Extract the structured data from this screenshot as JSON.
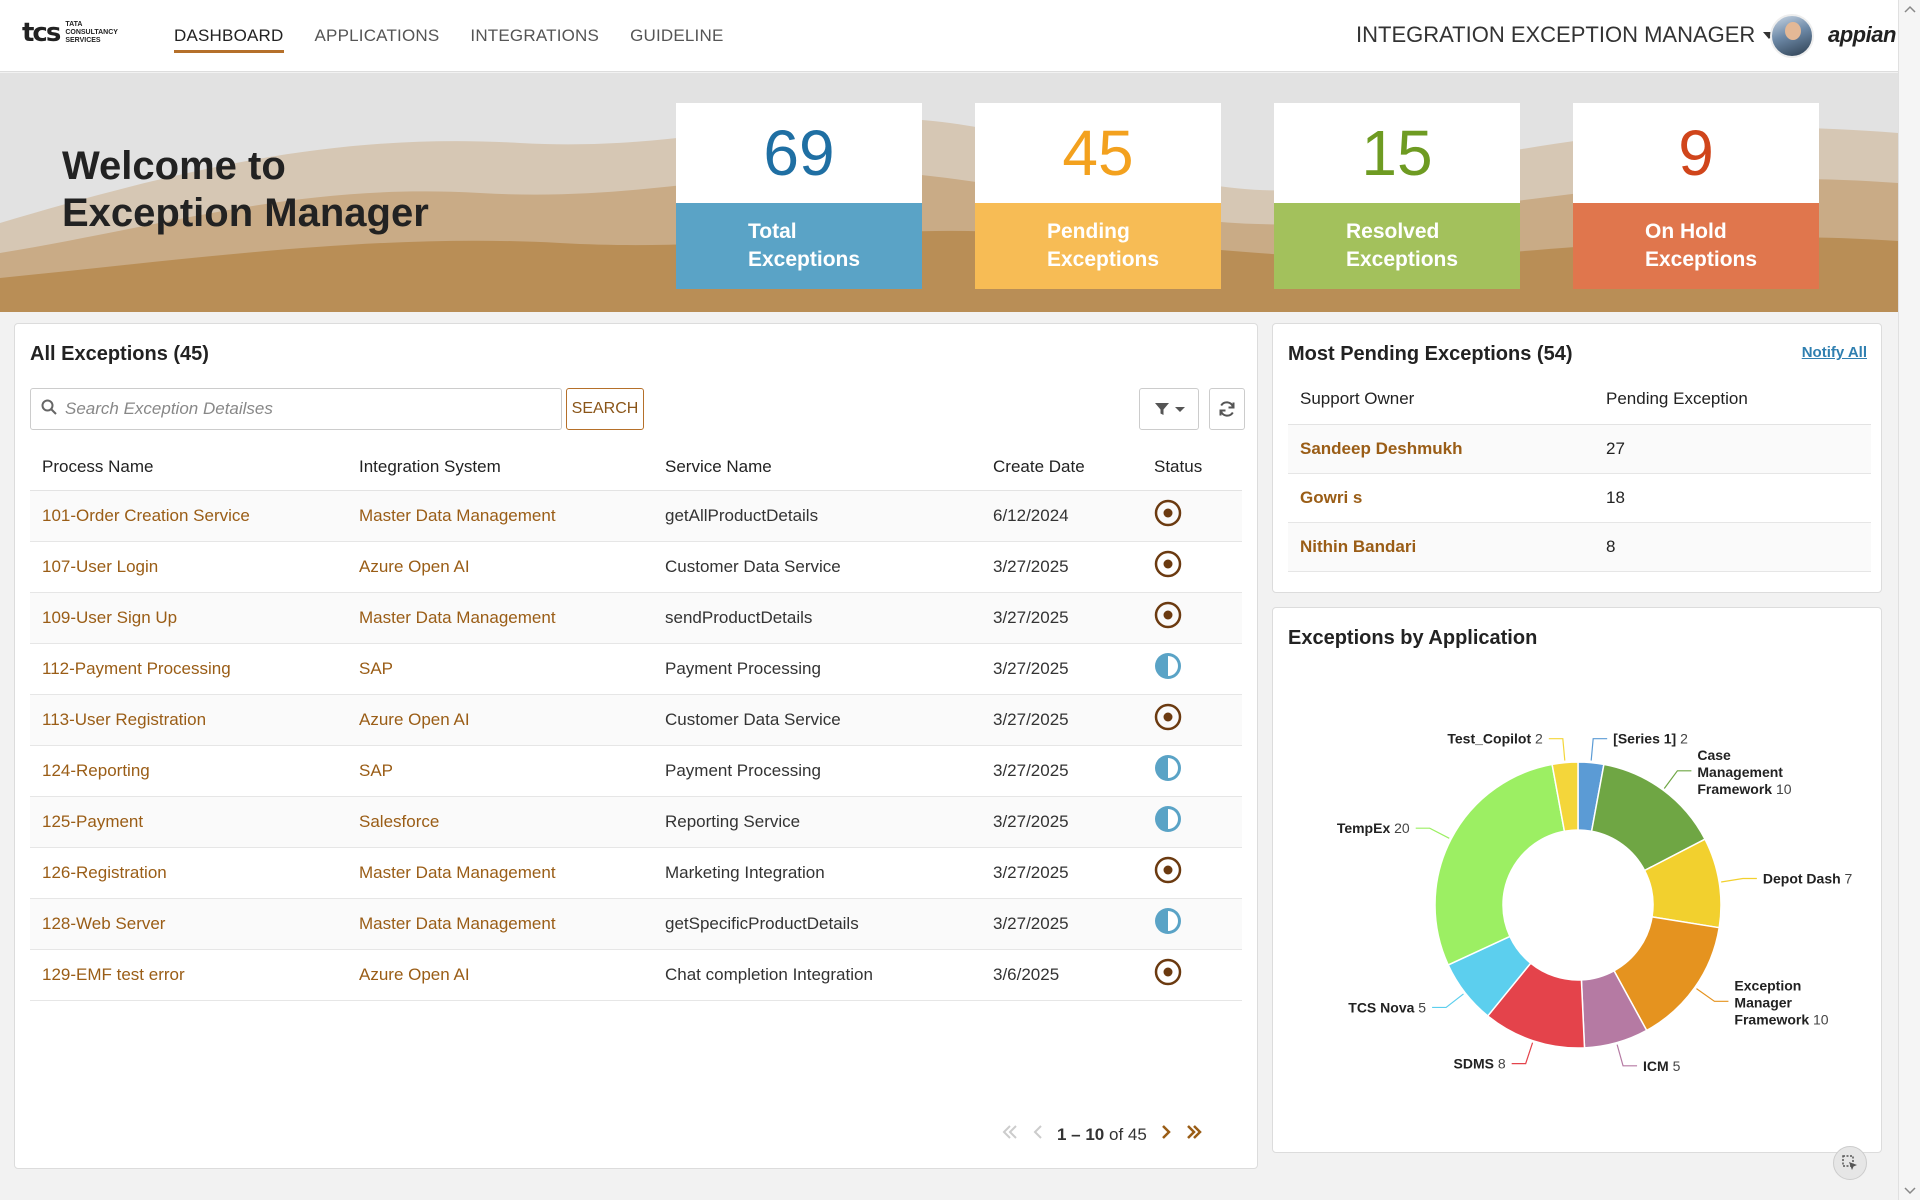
{
  "header": {
    "logo_mark": "tcs",
    "logo_sub": "TATA CONSULTANCY SERVICES",
    "nav": [
      "DASHBOARD",
      "APPLICATIONS",
      "INTEGRATIONS",
      "GUIDELINE"
    ],
    "active_nav": "DASHBOARD",
    "app_title": "INTEGRATION EXCEPTION MANAGER",
    "brand": "appian"
  },
  "hero": {
    "welcome_line1": "Welcome to",
    "welcome_line2": "Exception Manager",
    "kpis": [
      {
        "value": "69",
        "label1": "Total",
        "label2": "Exceptions",
        "color": "#5aa3c6",
        "num_color": "#1f6fa3",
        "icon": "list-icon"
      },
      {
        "value": "45",
        "label1": "Pending",
        "label2": "Exceptions",
        "color": "#f7bc55",
        "num_color": "#f3a11e",
        "icon": "clock-icon"
      },
      {
        "value": "15",
        "label1": "Resolved",
        "label2": "Exceptions",
        "color": "#a3c15c",
        "num_color": "#6e9b22",
        "icon": "check-icon"
      },
      {
        "value": "9",
        "label1": "On Hold",
        "label2": "Exceptions",
        "color": "#e0764d",
        "num_color": "#d0451b",
        "icon": "pause-icon"
      }
    ]
  },
  "exceptions": {
    "title": "All Exceptions (45)",
    "search_placeholder": "Search Exception Detailses",
    "search_label": "SEARCH",
    "columns": [
      "Process Name",
      "Integration System",
      "Service Name",
      "Create Date",
      "Status"
    ],
    "rows": [
      {
        "process": "101-Order Creation Service",
        "system": "Master Data Management",
        "service": "getAllProductDetails",
        "date": "6/12/2024",
        "status": "pending"
      },
      {
        "process": "107-User Login",
        "system": "Azure Open AI",
        "service": "Customer Data Service",
        "date": "3/27/2025",
        "status": "pending"
      },
      {
        "process": "109-User Sign Up",
        "system": "Master Data Management",
        "service": "sendProductDetails",
        "date": "3/27/2025",
        "status": "pending"
      },
      {
        "process": "112-Payment Processing",
        "system": "SAP",
        "service": "Payment Processing",
        "date": "3/27/2025",
        "status": "in-progress"
      },
      {
        "process": "113-User Registration",
        "system": "Azure Open AI",
        "service": "Customer Data Service",
        "date": "3/27/2025",
        "status": "pending"
      },
      {
        "process": "124-Reporting",
        "system": "SAP",
        "service": "Payment Processing",
        "date": "3/27/2025",
        "status": "in-progress"
      },
      {
        "process": "125-Payment",
        "system": "Salesforce",
        "service": "Reporting Service",
        "date": "3/27/2025",
        "status": "in-progress"
      },
      {
        "process": "126-Registration",
        "system": "Master Data Management",
        "service": "Marketing Integration",
        "date": "3/27/2025",
        "status": "pending"
      },
      {
        "process": "128-Web Server",
        "system": "Master Data Management",
        "service": "getSpecificProductDetails",
        "date": "3/27/2025",
        "status": "in-progress"
      },
      {
        "process": "129-EMF test error",
        "system": "Azure Open AI",
        "service": "Chat completion Integration",
        "date": "3/6/2025",
        "status": "pending"
      }
    ],
    "pager_range": "1 – 10",
    "pager_of": "of 45"
  },
  "pending": {
    "title": "Most Pending Exceptions (54)",
    "notify_label": "Notify All",
    "columns": [
      "Support Owner",
      "Pending Exception"
    ],
    "rows": [
      {
        "owner": "Sandeep  Deshmukh",
        "count": "27"
      },
      {
        "owner": "Gowri  s",
        "count": "18"
      },
      {
        "owner": "Nithin  Bandari",
        "count": "8"
      }
    ]
  },
  "by_app": {
    "title": "Exceptions by Application"
  },
  "chart_data": {
    "type": "pie",
    "variant": "donut",
    "title": "Exceptions by Application",
    "slices": [
      {
        "name": "[Series 1]",
        "value": 2,
        "color": "#5b9bd5"
      },
      {
        "name": "Case Management Framework",
        "value": 10,
        "color": "#6fa644"
      },
      {
        "name": "Depot Dash",
        "value": 7,
        "color": "#f2d02e"
      },
      {
        "name": "Exception Manager Framework",
        "value": 10,
        "color": "#e5931f"
      },
      {
        "name": "ICM",
        "value": 5,
        "color": "#b57aa3"
      },
      {
        "name": "SDMS",
        "value": 8,
        "color": "#e4434b"
      },
      {
        "name": "TCS Nova",
        "value": 5,
        "color": "#5ccfee"
      },
      {
        "name": "TempEx",
        "value": 20,
        "color": "#9cef63"
      },
      {
        "name": "Test_Copilot",
        "value": 2,
        "color": "#f4d63a"
      }
    ]
  }
}
